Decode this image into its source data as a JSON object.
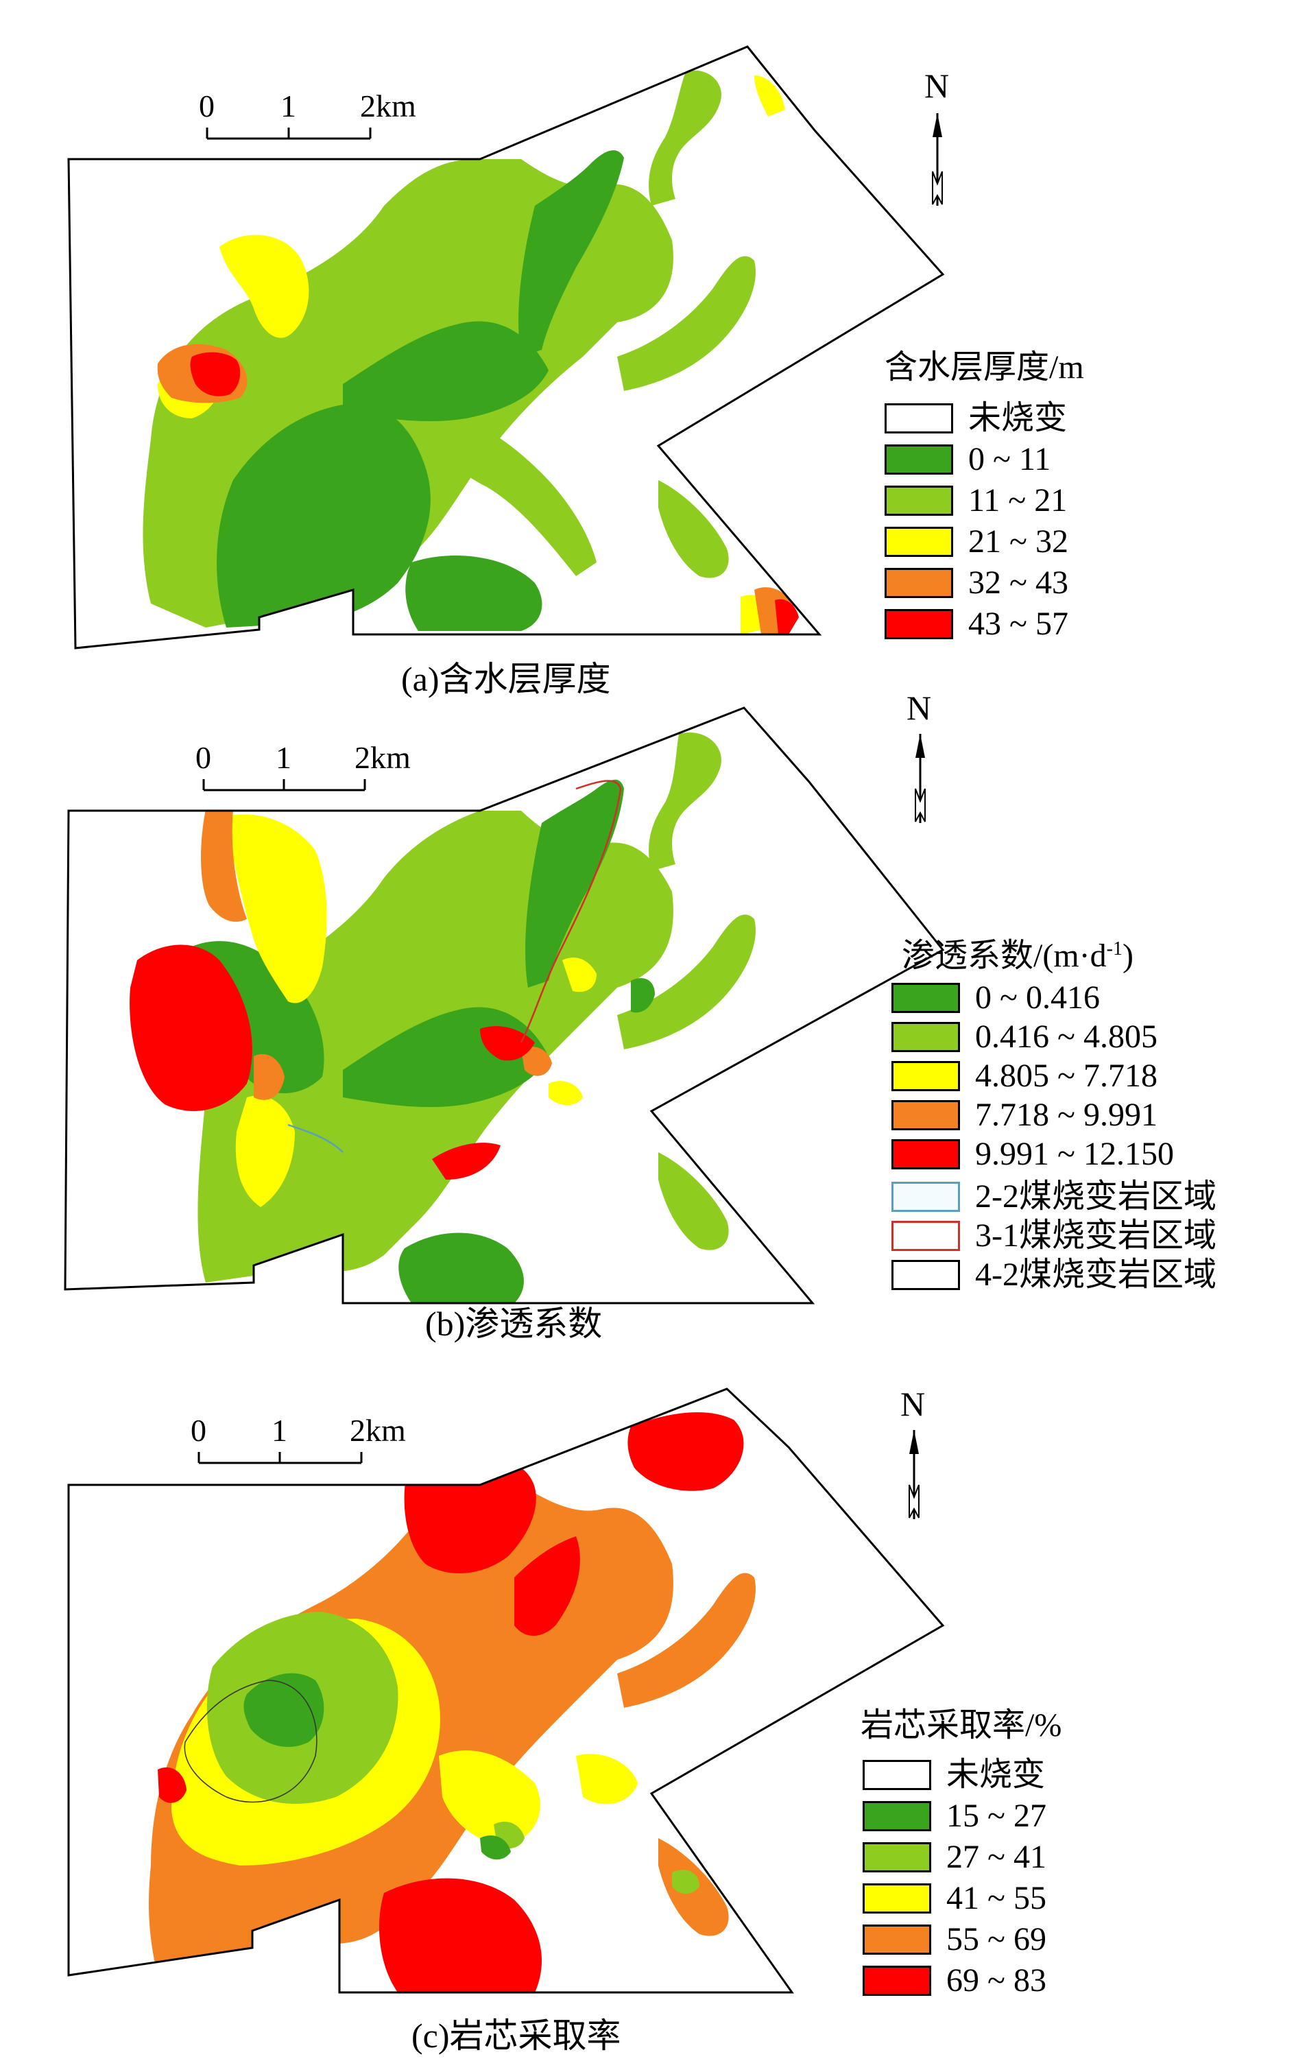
{
  "colors": {
    "unburnt": "#ffffff",
    "dark_green": "#3aa41c",
    "light_green": "#8fcc20",
    "yellow": "#ffff00",
    "orange": "#f58220",
    "red": "#ff0000",
    "outline_2_2": "#5a9fc0",
    "outline_3_1": "#d0302a",
    "outline_4_2": "#000000"
  },
  "panels": [
    {
      "caption": "(a)含水层厚度",
      "scale": {
        "label_0": "0",
        "label_1": "1",
        "label_2": "2km"
      },
      "north": "N",
      "legend": {
        "title": "含水层厚度/m",
        "items": [
          {
            "label": "未烧变",
            "color": "#ffffff"
          },
          {
            "label": "0 ~ 11",
            "color": "#3aa41c"
          },
          {
            "label": "11 ~ 21",
            "color": "#8fcc20"
          },
          {
            "label": "21 ~ 32",
            "color": "#ffff00"
          },
          {
            "label": "32 ~ 43",
            "color": "#f58220"
          },
          {
            "label": "43 ~ 57",
            "color": "#ff0000"
          }
        ]
      }
    },
    {
      "caption": "(b)渗透系数",
      "scale": {
        "label_0": "0",
        "label_1": "1",
        "label_2": "2km"
      },
      "north": "N",
      "legend": {
        "title": "渗透系数/(m·d",
        "title_sup": "-1",
        "title_end": ")",
        "items": [
          {
            "label": "0 ~ 0.416",
            "color": "#3aa41c"
          },
          {
            "label": "0.416 ~ 4.805",
            "color": "#8fcc20"
          },
          {
            "label": "4.805 ~ 7.718",
            "color": "#ffff00"
          },
          {
            "label": "7.718 ~ 9.991",
            "color": "#f58220"
          },
          {
            "label": "9.991 ~ 12.150",
            "color": "#ff0000"
          }
        ],
        "outline_items": [
          {
            "label": "2-2煤烧变岩区域",
            "color": "#5a9fc0"
          },
          {
            "label": "3-1煤烧变岩区域",
            "color": "#d0302a"
          },
          {
            "label": "4-2煤烧变岩区域",
            "color": "#000000"
          }
        ]
      }
    },
    {
      "caption": "(c)岩芯采取率",
      "scale": {
        "label_0": "0",
        "label_1": "1",
        "label_2": "2km"
      },
      "north": "N",
      "legend": {
        "title": "岩芯采取率/%",
        "items": [
          {
            "label": "未烧变",
            "color": "#ffffff"
          },
          {
            "label": "15 ~ 27",
            "color": "#3aa41c"
          },
          {
            "label": "27 ~ 41",
            "color": "#8fcc20"
          },
          {
            "label": "41 ~ 55",
            "color": "#ffff00"
          },
          {
            "label": "55 ~ 69",
            "color": "#f58220"
          },
          {
            "label": "69 ~ 83",
            "color": "#ff0000"
          }
        ]
      }
    }
  ]
}
